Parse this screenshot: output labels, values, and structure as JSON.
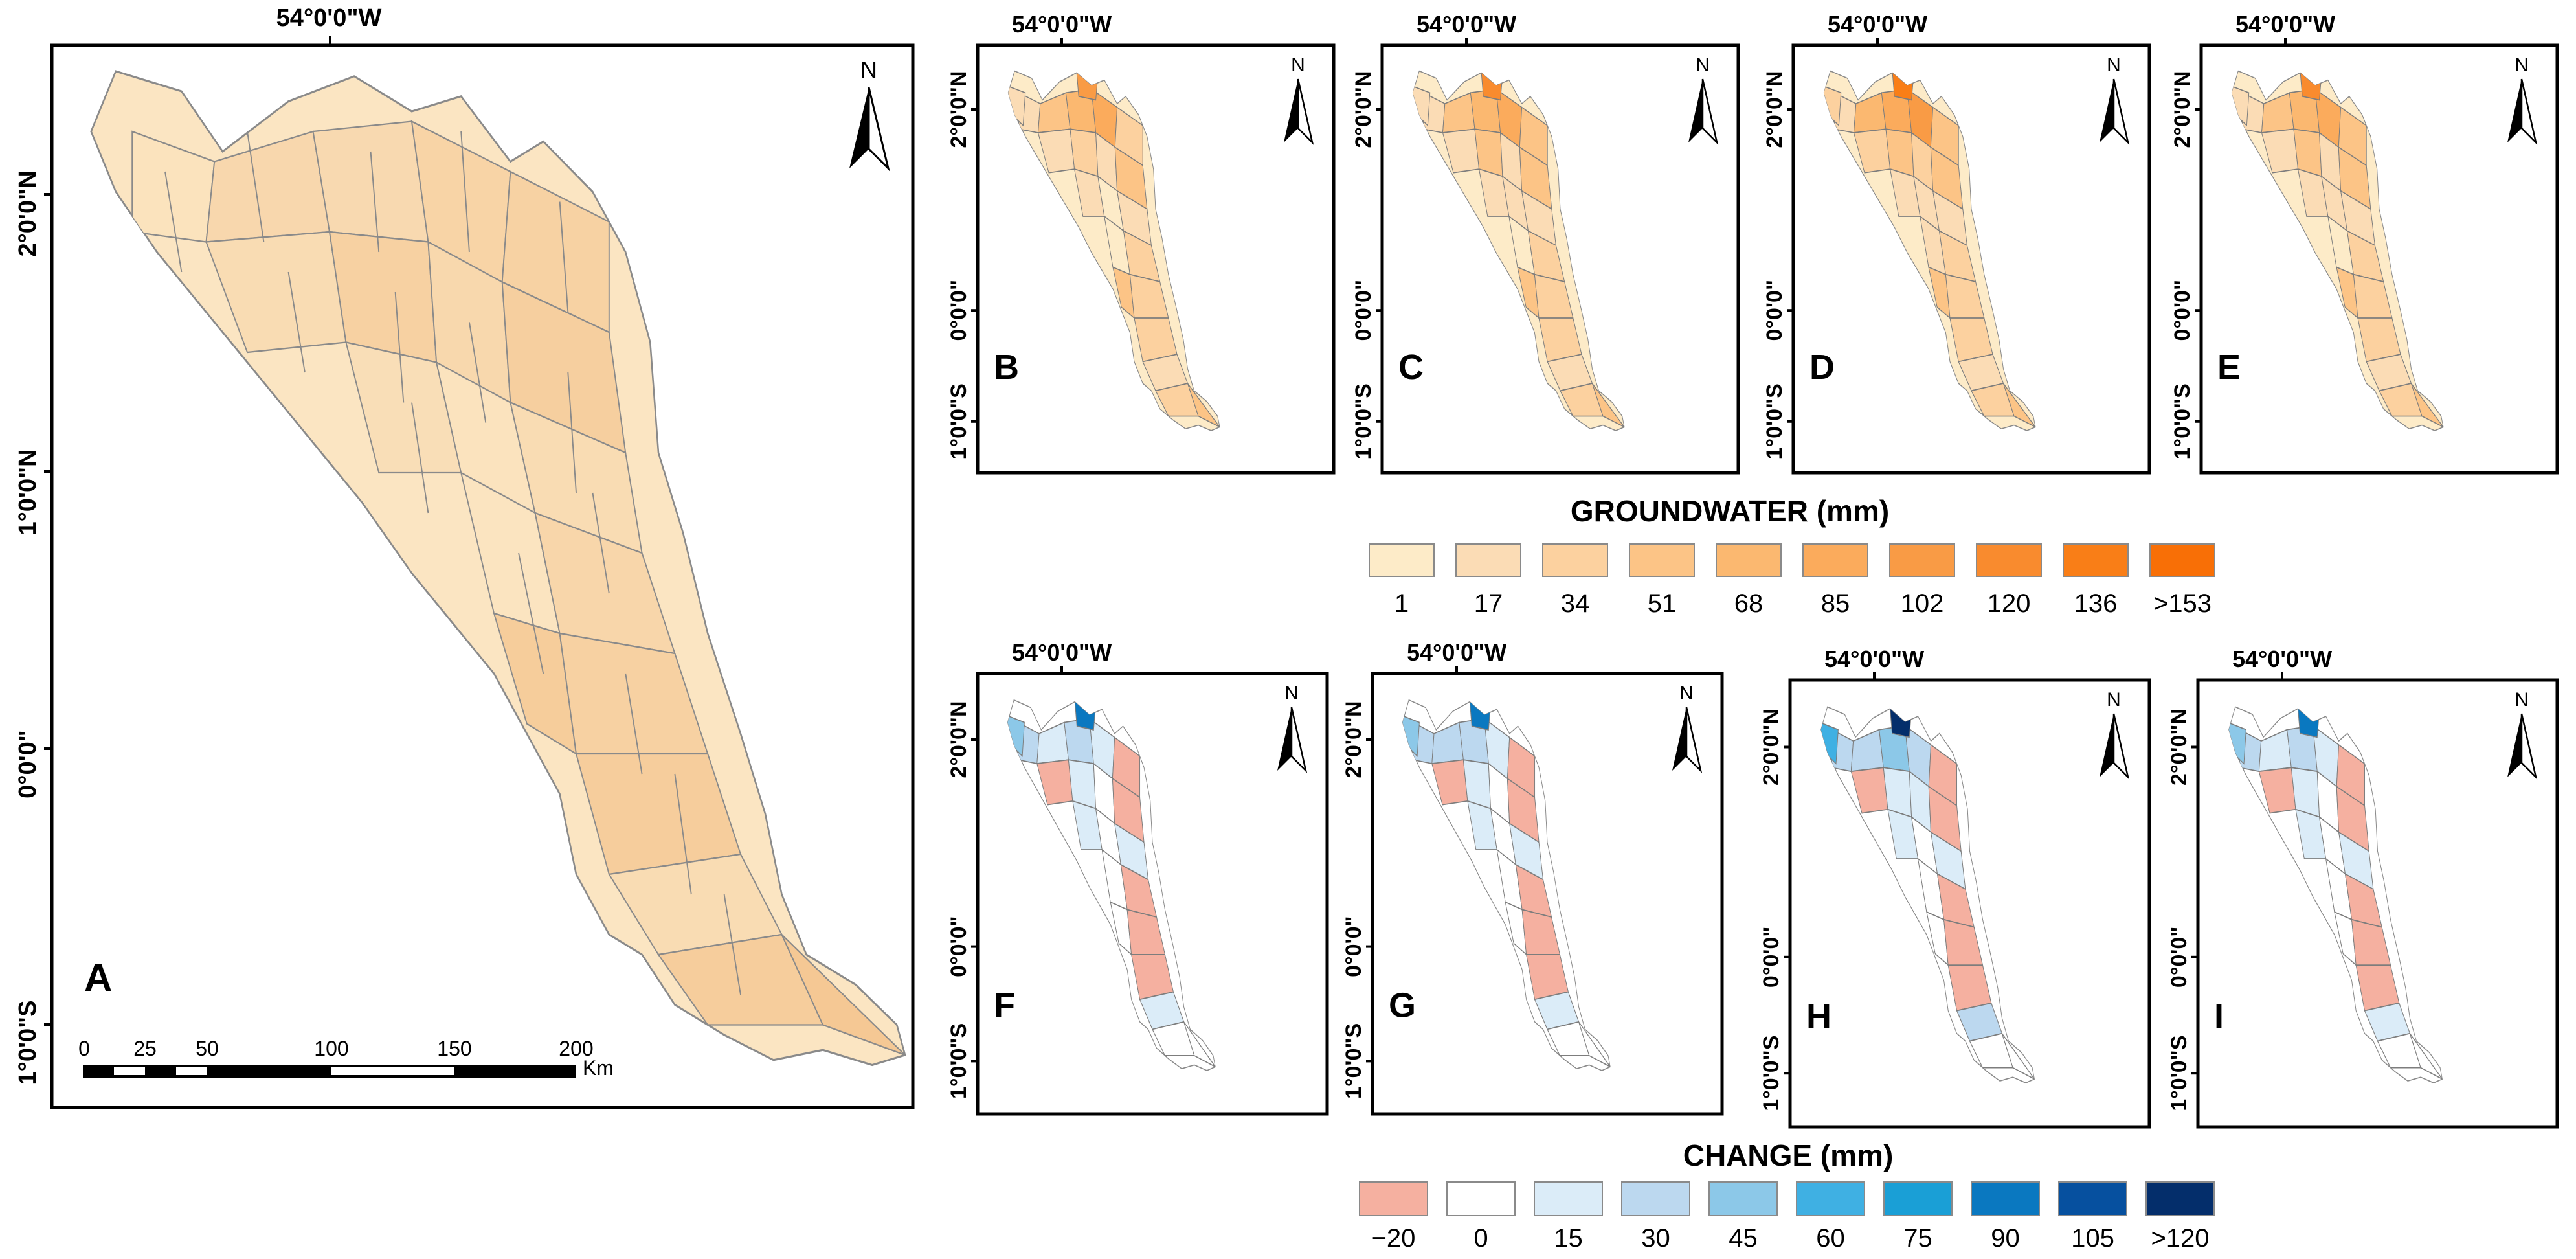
{
  "lon_label": "54°0'0\"W",
  "lat_labels_a": [
    "2°0'0\"N",
    "1°0'0\"N",
    "0°0'0\"",
    "1°0'0\"S"
  ],
  "lat_labels_small": [
    "2°0'0\"N",
    "0°0'0\"",
    "1°0'0\"S"
  ],
  "north_label": "N",
  "panel_letters": [
    "A",
    "B",
    "C",
    "D",
    "E",
    "F",
    "G",
    "H",
    "I"
  ],
  "scale_bar": {
    "ticks": [
      "0",
      "25",
      "50",
      "100",
      "150",
      "200"
    ],
    "unit": "Km"
  },
  "groundwater_legend": {
    "title": "GROUNDWATER (mm)",
    "labels": [
      "1",
      "17",
      "34",
      "51",
      "68",
      "85",
      "102",
      "120",
      "136",
      ">153"
    ],
    "colors": [
      "#fdebc8",
      "#fbdcb5",
      "#fcd19f",
      "#fcc486",
      "#fbb870",
      "#fbab5c",
      "#f99b45",
      "#f98b2e",
      "#f97e17",
      "#f86f06"
    ]
  },
  "change_legend": {
    "title": "CHANGE (mm)",
    "labels": [
      "−20",
      "0",
      "15",
      "30",
      "45",
      "60",
      "75",
      "90",
      "105",
      ">120"
    ],
    "colors": [
      "#f5b0a0",
      "#ffffff",
      "#dbecf8",
      "#bcd8ef",
      "#8cc8e8",
      "#3fb0e3",
      "#1a9fd6",
      "#0a78c0",
      "#06509f",
      "#042e6b"
    ]
  }
}
